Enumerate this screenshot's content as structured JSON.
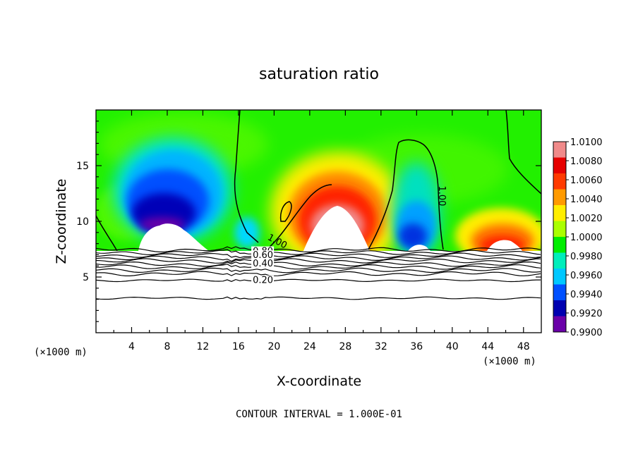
{
  "chart_data": {
    "type": "heatmap",
    "title": "saturation ratio",
    "xlabel": "X-coordinate",
    "ylabel": "Z-coordinate",
    "x_unit": "(×1000 m)",
    "x_unit_right": "(×1000 m)",
    "xlim": [
      0,
      50
    ],
    "ylim": [
      0,
      20
    ],
    "x_ticks": [
      4,
      8,
      12,
      16,
      20,
      24,
      28,
      32,
      36,
      40,
      44,
      48
    ],
    "y_ticks": [
      5,
      10,
      15
    ],
    "colorbar": {
      "min": 0.99,
      "max": 1.01,
      "labels": [
        "1.0100",
        "1.0080",
        "1.0060",
        "1.0040",
        "1.0020",
        "1.0000",
        "0.9980",
        "0.9960",
        "0.9940",
        "0.9920",
        "0.9900"
      ],
      "colors": [
        "#f08a8a",
        "#e60000",
        "#ff3a00",
        "#ff9a00",
        "#ffee00",
        "#aaff00",
        "#00ee00",
        "#00eebb",
        "#00c8ff",
        "#0050ff",
        "#0000b0",
        "#6a00a8"
      ]
    },
    "contour_labels": [
      {
        "text": "1.00",
        "x": 19.2,
        "y": 8.4,
        "rotate": 28
      },
      {
        "text": "1.00",
        "x": 38.5,
        "y": 13.2,
        "rotate": 90
      },
      {
        "text": "0.80",
        "x": 17.6,
        "y": 7.05,
        "rotate": 0
      },
      {
        "text": "0.60",
        "x": 17.6,
        "y": 6.7,
        "rotate": 0
      },
      {
        "text": "0.40",
        "x": 17.6,
        "y": 5.95,
        "rotate": 0
      },
      {
        "text": "0.20",
        "x": 17.6,
        "y": 4.45,
        "rotate": 0
      }
    ],
    "contour_lines_y": [
      7.45,
      7.2,
      6.95,
      6.7,
      6.45,
      6.15,
      5.9,
      5.6,
      5.3,
      4.7,
      3.1
    ],
    "footer": "CONTOUR INTERVAL = 1.000E-01"
  }
}
